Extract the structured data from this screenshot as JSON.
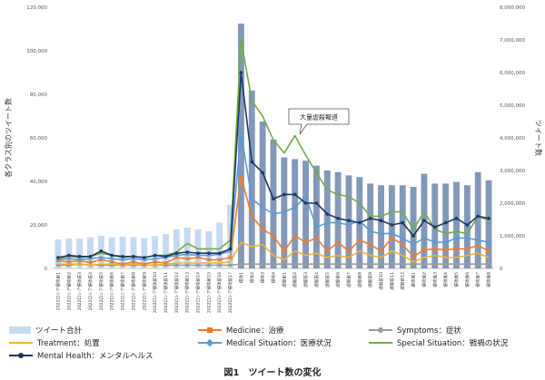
{
  "figure_caption": "図1　ツイート数の変化",
  "chart_data": {
    "type": "bar",
    "title": "",
    "ylabel": "各クラス別のツイート数",
    "y2label": "ツイート数",
    "ylim": [
      0,
      120000
    ],
    "y2lim": [
      0,
      8000000
    ],
    "yticks": [
      "0",
      "20,000",
      "40,000",
      "60,000",
      "80,000",
      "100,000",
      "120,000"
    ],
    "y2ticks": [
      "0",
      "1,000,000",
      "2,000,000",
      "3,000,000",
      "4,000,000",
      "5,000,000",
      "6,000,000",
      "7,000,000",
      "8,000,000"
    ],
    "grid": false,
    "legend_position": "bottom",
    "annotation": "大量虐殺報道",
    "categories": [
      "2022ロシア侵攻前1",
      "2022ロシア侵攻前2",
      "2022ロシア侵攻前3",
      "2022ロシア侵攻前4",
      "2022ロシア侵攻前5",
      "2022ロシア侵攻前6",
      "2022ロシア侵攻前7",
      "2022ロシア侵攻前8",
      "2022ロシア侵攻前9",
      "2022ロシア侵攻前10",
      "2022ロシア侵攻前11",
      "2022ロシア侵攻前12",
      "2022ロシア侵攻前13",
      "2022ロシア侵攻前14",
      "2022ロシア侵攻前15",
      "2022ロシア侵攻前16",
      "2022ロシア侵攻前17",
      "侵攻1",
      "侵攻2",
      "侵攻3",
      "侵攻4",
      "虐殺前1",
      "虐殺前2",
      "虐殺前3",
      "虐殺前4",
      "虐殺前5",
      "虐殺前6",
      "虐殺前7",
      "虐殺前8",
      "虐殺前9",
      "虐殺前10",
      "虐殺前11",
      "虐殺前12",
      "侵攻後1",
      "侵攻後2",
      "侵攻後3",
      "侵攻後4",
      "侵攻後5",
      "侵攻後6",
      "侵攻後7",
      "侵攻後8"
    ],
    "series": [
      {
        "name": "ツイート合計",
        "kind": "bar",
        "axis": "right",
        "color": "#c6d9ef",
        "color_dark": "#6d86ad",
        "values": [
          890000,
          920000,
          910000,
          960000,
          1000000,
          950000,
          970000,
          960000,
          930000,
          990000,
          1050000,
          1200000,
          1250000,
          1200000,
          1140000,
          1400000,
          1950000,
          7500000,
          5450000,
          4500000,
          3950000,
          3400000,
          3350000,
          3300000,
          3150000,
          3000000,
          2950000,
          2850000,
          2800000,
          2600000,
          2550000,
          2550000,
          2550000,
          2500000,
          2900000,
          2600000,
          2600000,
          2650000,
          2550000,
          2950000,
          2700000
        ],
        "dark_from_index": 17
      },
      {
        "name": "Medicine：治療",
        "kind": "line",
        "axis": "left",
        "color": "#ed7d31",
        "marker": "square",
        "values": [
          3500,
          3000,
          3500,
          2800,
          4000,
          3000,
          2000,
          3000,
          2000,
          3000,
          2500,
          5000,
          4500,
          5000,
          4000,
          4000,
          5000,
          42000,
          24000,
          18000,
          15000,
          8000,
          15000,
          12000,
          14000,
          8000,
          12000,
          8000,
          13000,
          11000,
          8000,
          14000,
          11000,
          5500,
          8500,
          9000,
          8500,
          9000,
          9000,
          10500,
          8000
        ]
      },
      {
        "name": "Symptoms：症状",
        "kind": "line",
        "axis": "left",
        "color": "#9a9a9a",
        "marker": "circle",
        "values": [
          1500,
          1500,
          2000,
          1500,
          1500,
          1500,
          1500,
          1500,
          1500,
          1500,
          1500,
          1500,
          1500,
          1500,
          1500,
          1500,
          1500,
          2000,
          2000,
          2000,
          2000,
          2000,
          2000,
          2000,
          2000,
          2000,
          2000,
          2000,
          2000,
          2000,
          2000,
          2000,
          2000,
          2000,
          2000,
          2000,
          2000,
          2000,
          2000,
          2000,
          2000
        ]
      },
      {
        "name": "Treatment：処置",
        "kind": "line",
        "axis": "left",
        "color": "#f0b429",
        "marker": "none",
        "values": [
          2000,
          2000,
          2000,
          1500,
          2000,
          2000,
          1500,
          2000,
          1500,
          1500,
          2000,
          2500,
          2500,
          2500,
          2500,
          2500,
          3000,
          12000,
          10000,
          11000,
          6000,
          4000,
          8000,
          6000,
          7000,
          5000,
          6000,
          5000,
          8000,
          6000,
          5000,
          8000,
          6000,
          3000,
          5000,
          6000,
          5000,
          5000,
          6000,
          7000,
          5000
        ]
      },
      {
        "name": "Medical Situation：医療状況",
        "kind": "line",
        "axis": "left",
        "color": "#5b9bd5",
        "marker": "diamond",
        "values": [
          4000,
          4500,
          4000,
          4500,
          5000,
          4500,
          4000,
          4500,
          4000,
          4500,
          5000,
          6000,
          6500,
          6000,
          6000,
          6500,
          8000,
          62000,
          32000,
          28000,
          25000,
          26000,
          28000,
          33000,
          19000,
          21000,
          21000,
          20000,
          22000,
          17000,
          16000,
          16000,
          14000,
          11000,
          14000,
          12000,
          12000,
          14000,
          14000,
          13000,
          12000
        ]
      },
      {
        "name": "Special Situation：戦禍の状況",
        "kind": "line",
        "axis": "left",
        "color": "#70ad47",
        "marker": "none",
        "values": [
          4500,
          5500,
          5000,
          5500,
          7000,
          6000,
          5000,
          5500,
          5000,
          6000,
          6000,
          7500,
          11500,
          9000,
          9000,
          9000,
          13000,
          105000,
          77000,
          70000,
          59000,
          53000,
          61000,
          52000,
          44000,
          36000,
          34000,
          33000,
          30000,
          24000,
          24000,
          26000,
          26000,
          18000,
          26000,
          18000,
          16000,
          17000,
          16000,
          24000,
          22000
        ]
      },
      {
        "name": "Mental Health：メンタルヘルス",
        "kind": "line",
        "axis": "left",
        "color": "#1f3864",
        "marker": "circle",
        "values": [
          5000,
          6000,
          5500,
          5500,
          8000,
          6000,
          5500,
          5500,
          5000,
          6000,
          5500,
          7000,
          7500,
          7000,
          7000,
          7000,
          9000,
          90000,
          49000,
          44000,
          32000,
          34000,
          34000,
          30000,
          30000,
          25000,
          23000,
          22000,
          21000,
          23000,
          22000,
          20000,
          21000,
          15000,
          22000,
          19000,
          21000,
          23000,
          20000,
          24000,
          23000
        ]
      }
    ]
  }
}
